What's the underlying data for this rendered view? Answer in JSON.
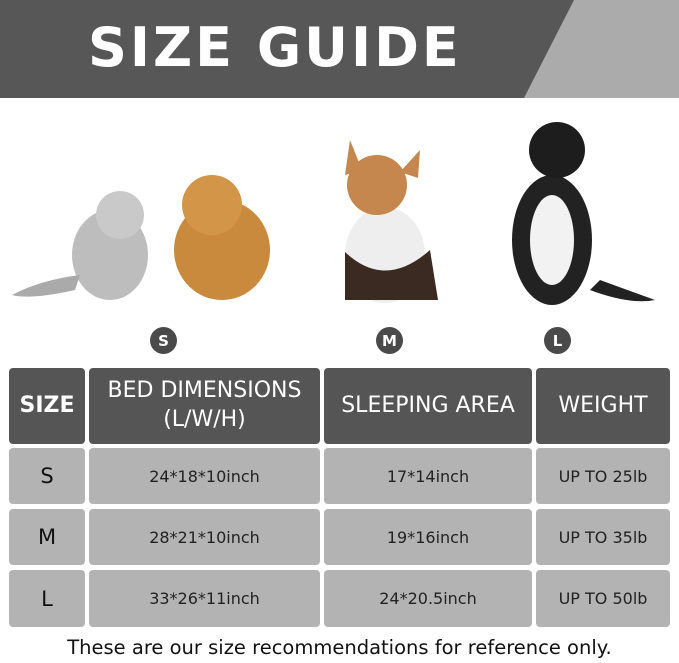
{
  "header": {
    "title": "SIZE GUIDE"
  },
  "sizes": [
    "S",
    "M",
    "L"
  ],
  "table": {
    "headers": [
      "SIZE",
      "BED DIMENSIONS",
      "(L/W/H)",
      "SLEEPING AREA",
      "WEIGHT"
    ],
    "rows": [
      {
        "size": "S",
        "dimensions": "24*18*10inch",
        "area": "17*14inch",
        "weight": "UP TO 25lb"
      },
      {
        "size": "M",
        "dimensions": "28*21*10inch",
        "area": "19*16inch",
        "weight": "UP TO 35lb"
      },
      {
        "size": "L",
        "dimensions": "33*26*11inch",
        "area": "24*20.5inch",
        "weight": "UP TO 50lb"
      }
    ]
  },
  "footer": "These are our size recommendations for reference only.",
  "colors": {
    "dark": "#575757",
    "light": "#ababab",
    "cell": "#b3b3b3"
  }
}
